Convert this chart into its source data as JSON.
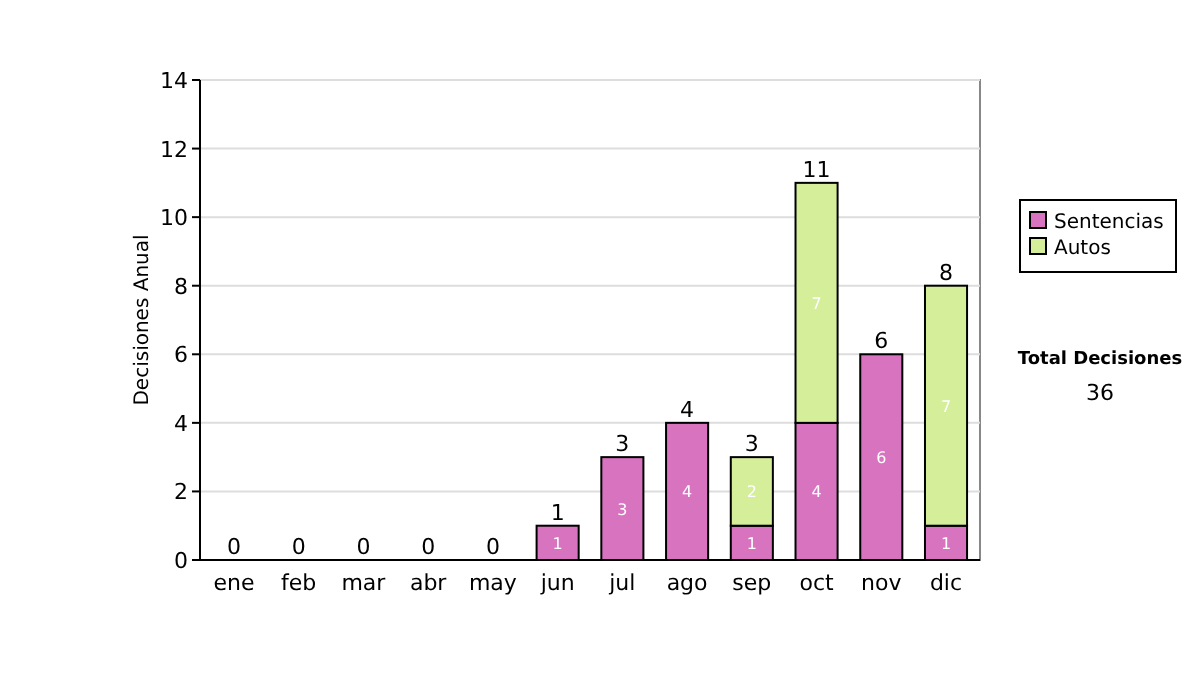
{
  "chart_data": {
    "type": "bar",
    "stacked": true,
    "ylabel": "Decisiones Anual",
    "categories": [
      "ene",
      "feb",
      "mar",
      "abr",
      "may",
      "jun",
      "jul",
      "ago",
      "sep",
      "oct",
      "nov",
      "dic"
    ],
    "series": [
      {
        "name": "Sentencias",
        "color": "#d873c0",
        "values": [
          0,
          0,
          0,
          0,
          0,
          1,
          3,
          4,
          1,
          4,
          6,
          1
        ],
        "value_labels": [
          null,
          null,
          null,
          null,
          null,
          "1",
          "3",
          "4",
          "1",
          "4",
          "6",
          "1"
        ]
      },
      {
        "name": "Autos",
        "color": "#d4ee9a",
        "values": [
          null,
          null,
          null,
          null,
          null,
          null,
          null,
          null,
          2,
          7,
          null,
          7
        ],
        "value_labels": [
          null,
          null,
          null,
          null,
          null,
          null,
          null,
          null,
          "2",
          "7",
          null,
          "7"
        ]
      }
    ],
    "totals": [
      "0",
      "0",
      "0",
      "0",
      "0",
      "1",
      "3",
      "4",
      "3",
      "11",
      "6",
      "8"
    ],
    "ylim": [
      0,
      14
    ],
    "yticks": [
      0,
      2,
      4,
      6,
      8,
      10,
      12,
      14
    ],
    "grid": "y",
    "legend": "right",
    "annotations": [
      "Total Decisiones",
      "36"
    ]
  }
}
